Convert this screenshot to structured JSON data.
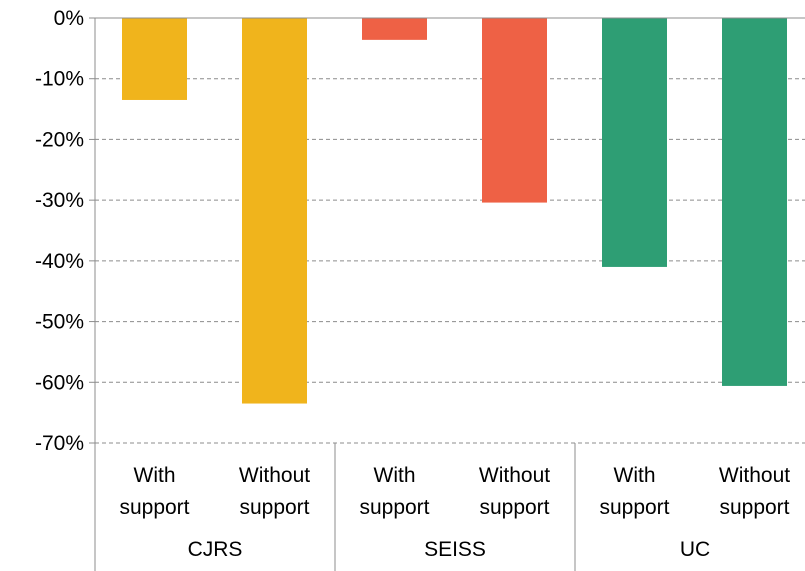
{
  "chart_data": {
    "type": "bar",
    "title": "",
    "xlabel": "",
    "ylabel": "",
    "ylim": [
      -70,
      0
    ],
    "yticks": [
      0,
      -10,
      -20,
      -30,
      -40,
      -50,
      -60,
      -70
    ],
    "ytick_labels": [
      "0%",
      "-10%",
      "-20%",
      "-30%",
      "-40%",
      "-50%",
      "-60%",
      "-70%"
    ],
    "grid": true,
    "legend": "none",
    "groups": [
      {
        "name": "CJRS",
        "color": "#f0b41c",
        "bars": [
          {
            "label": [
              "With",
              "support"
            ],
            "value": -13.5
          },
          {
            "label": [
              "Without",
              "support"
            ],
            "value": -63.5
          }
        ]
      },
      {
        "name": "SEISS",
        "color": "#ee6145",
        "bars": [
          {
            "label": [
              "With",
              "support"
            ],
            "value": -3.6
          },
          {
            "label": [
              "Without",
              "support"
            ],
            "value": -30.4
          }
        ]
      },
      {
        "name": "UC",
        "color": "#2e9e74",
        "bars": [
          {
            "label": [
              "With",
              "support"
            ],
            "value": -41.0
          },
          {
            "label": [
              "Without",
              "support"
            ],
            "value": -60.6
          }
        ]
      }
    ]
  }
}
